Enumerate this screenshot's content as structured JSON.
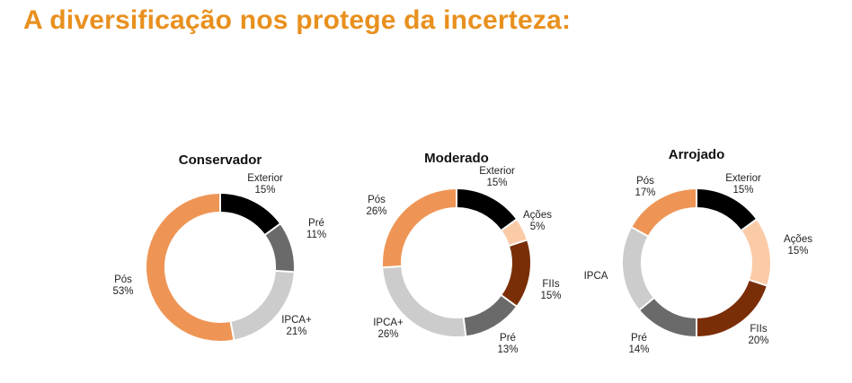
{
  "page": {
    "title": "A diversificação nos protege da incerteza:"
  },
  "chart_data": [
    {
      "type": "pie",
      "title": "Conservador",
      "slices": [
        {
          "name": "Exterior",
          "value": 15,
          "value_label": "15%",
          "color": "#000000"
        },
        {
          "name": "Pré",
          "value": 11,
          "value_label": "11%",
          "color": "#6A6A6A"
        },
        {
          "name": "IPCA+",
          "value": 21,
          "value_label": "21%",
          "color": "#CCCCCC"
        },
        {
          "name": "Pós",
          "value": 53,
          "value_label": "53%",
          "color": "#EE9556"
        }
      ]
    },
    {
      "type": "pie",
      "title": "Moderado",
      "slices": [
        {
          "name": "Exterior",
          "value": 15,
          "value_label": "15%",
          "color": "#000000"
        },
        {
          "name": "Ações",
          "value": 5,
          "value_label": "5%",
          "color": "#FBCBA8"
        },
        {
          "name": "FIIs",
          "value": 15,
          "value_label": "15%",
          "color": "#7A2E08"
        },
        {
          "name": "Pré",
          "value": 13,
          "value_label": "13%",
          "color": "#6A6A6A"
        },
        {
          "name": "IPCA+",
          "value": 26,
          "value_label": "26%",
          "color": "#CCCCCC"
        },
        {
          "name": "Pós",
          "value": 26,
          "value_label": "26%",
          "color": "#EE9556"
        }
      ]
    },
    {
      "type": "pie",
      "title": "Arrojado",
      "slices": [
        {
          "name": "Exterior",
          "value": 15,
          "value_label": "15%",
          "color": "#000000"
        },
        {
          "name": "Ações",
          "value": 15,
          "value_label": "15%",
          "color": "#FBCBA8"
        },
        {
          "name": "FIIs",
          "value": 20,
          "value_label": "20%",
          "color": "#7A2E08"
        },
        {
          "name": "Pré",
          "value": 14,
          "value_label": "14%",
          "color": "#6A6A6A"
        },
        {
          "name": "IPCA",
          "value": 19,
          "value_label": "",
          "color": "#CCCCCC"
        },
        {
          "name": "Pós",
          "value": 17,
          "value_label": "17%",
          "color": "#EE9556"
        }
      ]
    }
  ]
}
